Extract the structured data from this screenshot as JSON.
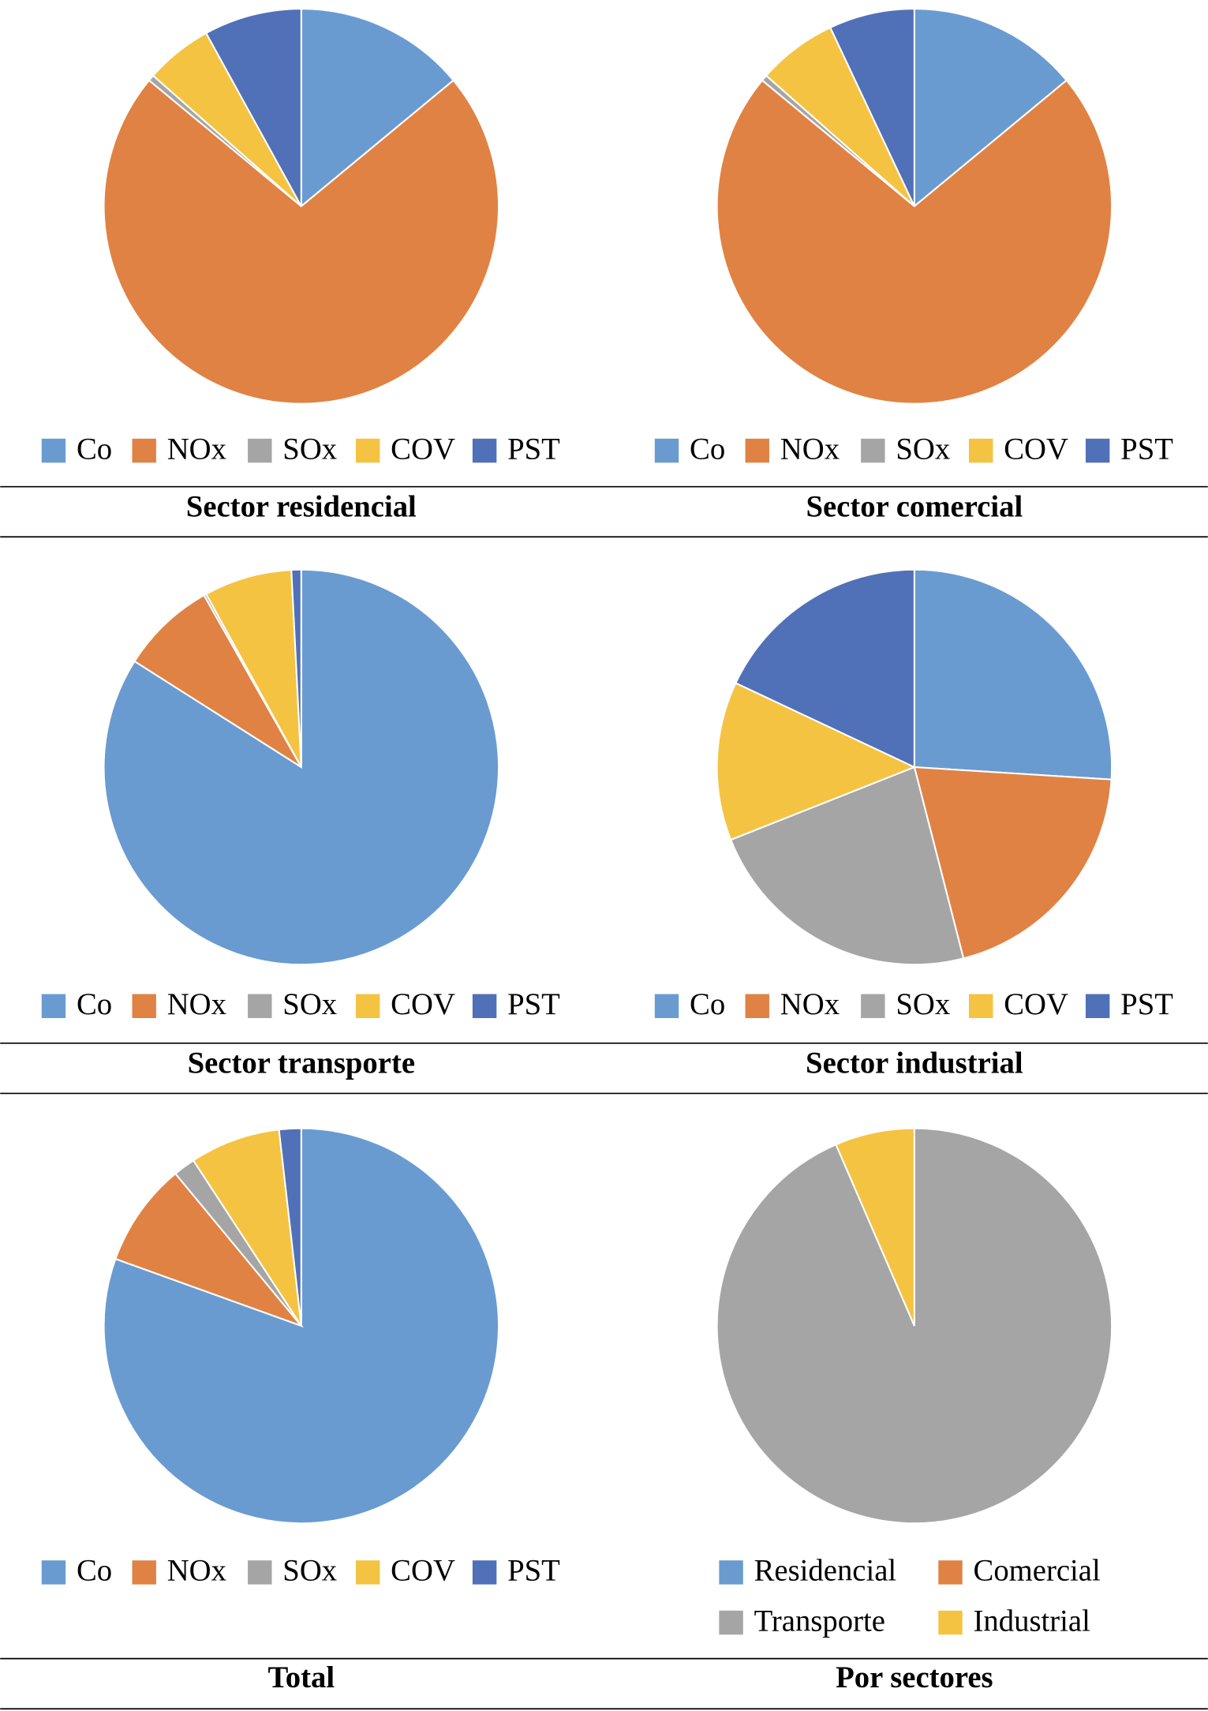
{
  "chart_data": [
    {
      "type": "pie",
      "title": "Sector residencial",
      "categories": [
        "Co",
        "NOx",
        "SOx",
        "COV",
        "PST"
      ],
      "values": [
        14,
        72,
        0.5,
        5.5,
        8
      ],
      "colors": [
        "#699bd1",
        "#e08244",
        "#a5a5a5",
        "#f5c342",
        "#5070b8"
      ]
    },
    {
      "type": "pie",
      "title": "Sector comercial",
      "categories": [
        "Co",
        "NOx",
        "SOx",
        "COV",
        "PST"
      ],
      "values": [
        14,
        72,
        0.5,
        6.5,
        7
      ],
      "colors": [
        "#699bd1",
        "#e08244",
        "#a5a5a5",
        "#f5c342",
        "#5070b8"
      ]
    },
    {
      "type": "pie",
      "title": "Sector transporte",
      "categories": [
        "Co",
        "NOx",
        "SOx",
        "COV",
        "PST"
      ],
      "values": [
        84,
        7.8,
        0.2,
        7.2,
        0.8
      ],
      "colors": [
        "#699bd1",
        "#e08244",
        "#a5a5a5",
        "#f5c342",
        "#5070b8"
      ]
    },
    {
      "type": "pie",
      "title": "Sector industrial",
      "categories": [
        "Co",
        "NOx",
        "SOx",
        "COV",
        "PST"
      ],
      "values": [
        26,
        20,
        23,
        13,
        18
      ],
      "colors": [
        "#699bd1",
        "#e08244",
        "#a5a5a5",
        "#f5c342",
        "#5070b8"
      ]
    },
    {
      "type": "pie",
      "title": "Total",
      "categories": [
        "Co",
        "NOx",
        "SOx",
        "COV",
        "PST"
      ],
      "values": [
        80.5,
        8.5,
        1.8,
        7.4,
        1.8
      ],
      "colors": [
        "#699bd1",
        "#e08244",
        "#a5a5a5",
        "#f5c342",
        "#5070b8"
      ]
    },
    {
      "type": "pie",
      "title": "Por sectores",
      "categories": [
        "Residencial",
        "Comercial",
        "Transporte",
        "Industrial"
      ],
      "values": [
        0,
        0,
        93.5,
        6.5
      ],
      "colors": [
        "#699bd1",
        "#e08244",
        "#a5a5a5",
        "#f5c342"
      ]
    }
  ]
}
